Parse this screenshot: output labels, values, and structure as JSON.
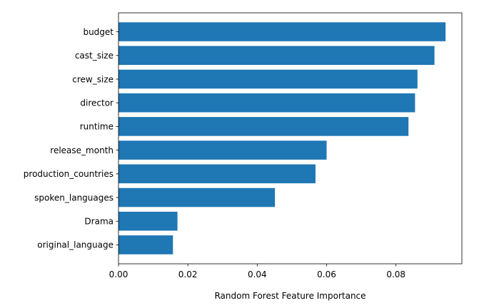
{
  "chart_data": {
    "type": "bar",
    "orientation": "horizontal",
    "title": "",
    "xlabel": "Random Forest Feature Importance",
    "ylabel": "",
    "categories": [
      "budget",
      "cast_size",
      "crew_size",
      "director",
      "runtime",
      "release_month",
      "production_countries",
      "spoken_languages",
      "Drama",
      "original_language"
    ],
    "values": [
      0.0943,
      0.0911,
      0.0862,
      0.0855,
      0.0836,
      0.06,
      0.0568,
      0.0451,
      0.017,
      0.0157
    ],
    "xlim": [
      0,
      0.099
    ],
    "xticks": [
      "0.00",
      "0.02",
      "0.04",
      "0.06",
      "0.08"
    ],
    "bar_color": "#1f77b4",
    "grid": false,
    "legend": "none"
  }
}
